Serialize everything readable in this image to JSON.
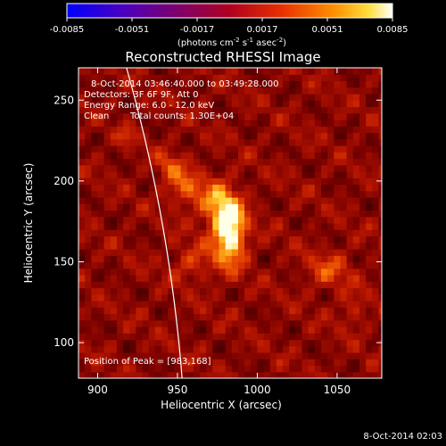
{
  "chart_data": {
    "type": "heatmap",
    "title": "Reconstructed RHESSI Image",
    "xlabel": "Heliocentric X (arcsec)",
    "ylabel": "Heliocentric Y (arcsec)",
    "xlim": [
      888,
      1078
    ],
    "ylim": [
      78,
      270
    ],
    "xticks": [
      900,
      950,
      1000,
      1050
    ],
    "yticks": [
      100,
      150,
      200,
      250
    ],
    "colorbar": {
      "ticks": [
        "-0.0085",
        "-0.0051",
        "-0.0017",
        "0.0017",
        "0.0051",
        "0.0085"
      ],
      "min": -0.0085,
      "max": 0.0085,
      "units_label": {
        "prefix": "(photons cm",
        "exp1": "-2",
        "mid1": " s",
        "exp2": "-1",
        "mid2": " asec",
        "exp3": "-2",
        "suffix": ")"
      }
    },
    "annotations": {
      "time_range": "8-Oct-2014 03:46:40.000 to 03:49:28.000",
      "detectors": "Detectors: 3F 6F 9F, Att 0",
      "energy": "Energy Range: 6.0 - 12.0 keV",
      "clean": "Clean",
      "total_counts": "Total counts: 1.30E+04",
      "peak": "Position of Peak = [983,168]"
    },
    "peak": {
      "x": 983,
      "y": 168,
      "intensity": 0.0085
    },
    "sources": [
      {
        "x": 983,
        "y": 168,
        "sx": 7,
        "sy": 14,
        "amp": 1.0
      },
      {
        "x": 975,
        "y": 185,
        "sx": 8,
        "sy": 10,
        "amp": 0.55
      },
      {
        "x": 955,
        "y": 196,
        "sx": 8,
        "sy": 8,
        "amp": 0.45
      },
      {
        "x": 945,
        "y": 210,
        "sx": 6,
        "sy": 6,
        "amp": 0.35
      },
      {
        "x": 960,
        "y": 150,
        "sx": 10,
        "sy": 8,
        "amp": 0.3
      },
      {
        "x": 1045,
        "y": 145,
        "sx": 10,
        "sy": 8,
        "amp": 0.35
      },
      {
        "x": 918,
        "y": 228,
        "sx": 4,
        "sy": 4,
        "amp": 0.28
      },
      {
        "x": 1060,
        "y": 120,
        "sx": 6,
        "sy": 8,
        "amp": 0.22
      }
    ],
    "limb": {
      "description": "solar limb",
      "color": "#ffffff"
    }
  },
  "footer": {
    "date": "8-Oct-2014 02:03"
  },
  "colors": {
    "background": "#000000",
    "text": "#ffffff"
  }
}
